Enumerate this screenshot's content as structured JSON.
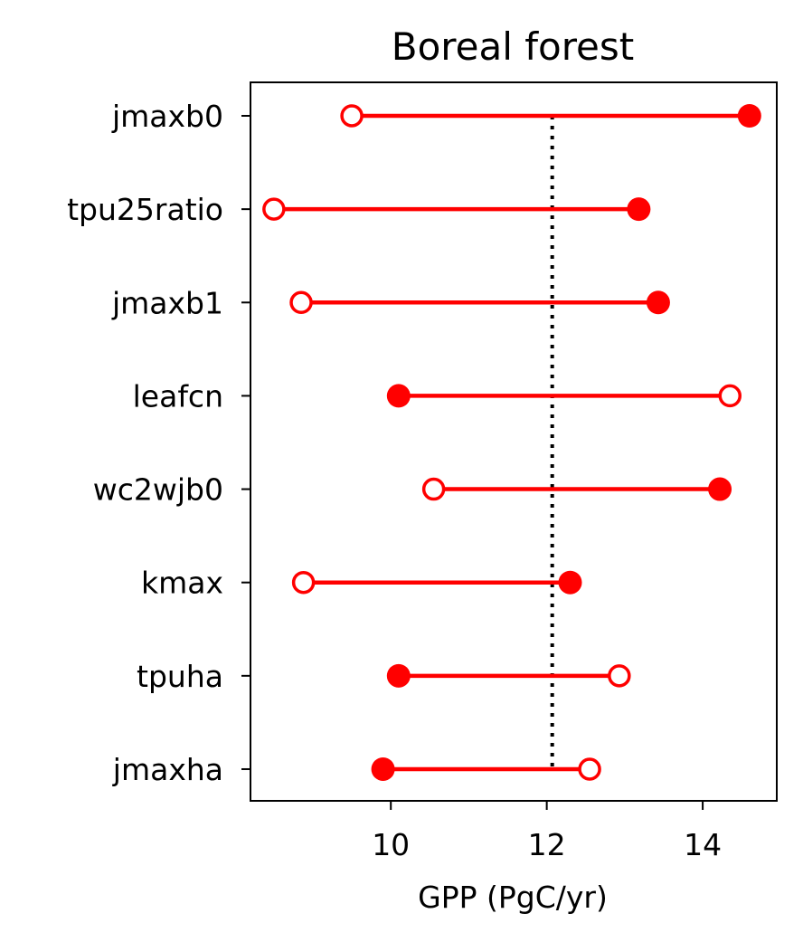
{
  "chart_data": {
    "type": "dumbbell",
    "title": "Boreal forest",
    "xlabel": "GPP (PgC/yr)",
    "ylabel": "",
    "xlim": [
      8.2,
      14.95
    ],
    "xticks": [
      10,
      12,
      14
    ],
    "reference_line": {
      "x": 12.07,
      "style": "dotted",
      "color": "#000000"
    },
    "categories": [
      "jmaxb0",
      "tpu25ratio",
      "jmaxb1",
      "leafcn",
      "wc2wjb0",
      "kmax",
      "tpuha",
      "jmaxha"
    ],
    "series": [
      {
        "marker": "filled-circle",
        "values": [
          14.6,
          13.18,
          13.43,
          10.1,
          14.22,
          12.3,
          10.1,
          9.9
        ]
      },
      {
        "marker": "open-circle",
        "values": [
          9.5,
          8.5,
          8.85,
          14.35,
          10.55,
          8.88,
          12.93,
          12.55
        ]
      }
    ],
    "colors": {
      "marker": "#ff0000",
      "line": "#ff0000",
      "axes": "#000000"
    },
    "grid": false,
    "legend": "none"
  }
}
